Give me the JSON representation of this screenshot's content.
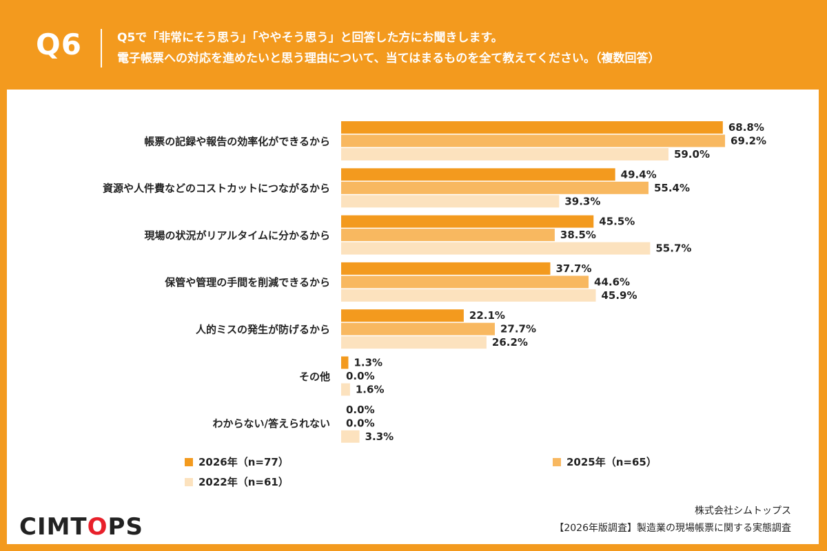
{
  "header": {
    "q_number": "Q6",
    "question_line1": "Q5で「非常にそう思う」「ややそう思う」と回答した方にお聞きします。",
    "question_line2": "電子帳票への対応を進めたいと思う理由について、当てはまるものを全て教えてください。（複数回答）"
  },
  "colors": {
    "background": "#F39A1E",
    "series_2026": "#F39A1E",
    "series_2025": "#F8B860",
    "series_2022": "#FCE2BE"
  },
  "chart_data": {
    "type": "bar",
    "orientation": "horizontal",
    "categories": [
      "帳票の記録や報告の効率化ができるから",
      "資源や人件費などのコストカットにつながるから",
      "現場の状況がリアルタイムに分かるから",
      "保管や管理の手間を削減できるから",
      "人的ミスの発生が防げるから",
      "その他",
      "わからない/答えられない"
    ],
    "series": [
      {
        "name": "2026年（n=77）",
        "values": [
          68.8,
          49.4,
          45.5,
          37.7,
          22.1,
          1.3,
          0.0
        ],
        "labels": [
          "68.8%",
          "49.4%",
          "45.5%",
          "37.7%",
          "22.1%",
          "1.3%",
          "0.0%"
        ]
      },
      {
        "name": "2025年（n=65）",
        "values": [
          69.2,
          55.4,
          38.5,
          44.6,
          27.7,
          0.0,
          0.0
        ],
        "labels": [
          "69.2%",
          "55.4%",
          "38.5%",
          "44.6%",
          "27.7%",
          "0.0%",
          "0.0%"
        ]
      },
      {
        "name": "2022年（n=61）",
        "values": [
          59.0,
          39.3,
          55.7,
          45.9,
          26.2,
          1.6,
          3.3
        ],
        "labels": [
          "59.0%",
          "39.3%",
          "55.7%",
          "45.9%",
          "26.2%",
          "1.6%",
          "3.3%"
        ]
      }
    ],
    "unit": "%",
    "legend_position": "bottom-left",
    "grid": false
  },
  "legend": {
    "item_2026": "2026年（n=77）",
    "item_2025": "2025年（n=65）",
    "item_2022": "2022年（n=61）"
  },
  "footer": {
    "logo_text_pre": "CIMT",
    "logo_text_dot": "O",
    "logo_text_post": "PS",
    "company": "株式会社シムトップス",
    "survey_title": "【2026年版調査】製造業の現場帳票に関する実態調査"
  }
}
